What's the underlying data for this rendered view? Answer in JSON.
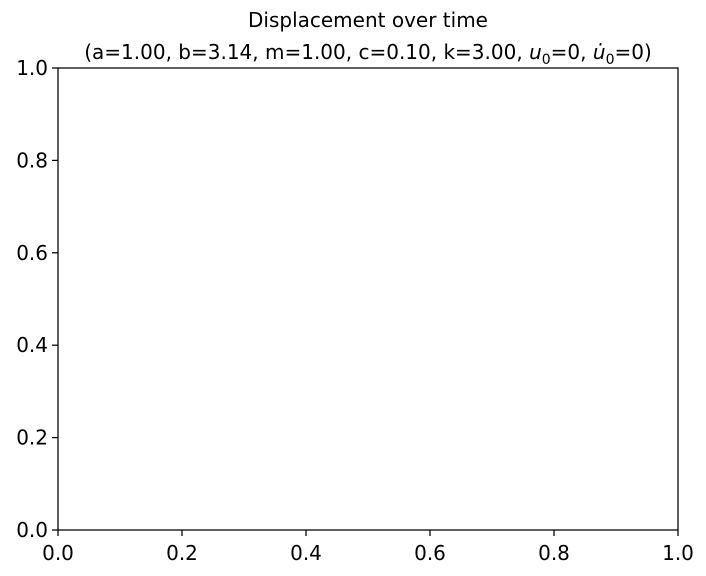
{
  "chart_data": {
    "type": "line",
    "title": "Displacement over time",
    "subtitle_parts": [
      "(a=1.00, b=3.14, m=1.00, c=0.10, k=3.00, ",
      "u",
      "0",
      "=0, ",
      "u̇",
      "0",
      "=0)"
    ],
    "xlabel": "",
    "ylabel": "",
    "xlim": [
      0.0,
      1.0
    ],
    "ylim": [
      0.0,
      1.0
    ],
    "x_ticks": [
      "0.0",
      "0.2",
      "0.4",
      "0.6",
      "0.8",
      "1.0"
    ],
    "y_ticks": [
      "0.0",
      "0.2",
      "0.4",
      "0.6",
      "0.8",
      "1.0"
    ],
    "series": [],
    "grid": false,
    "legend": "none"
  }
}
